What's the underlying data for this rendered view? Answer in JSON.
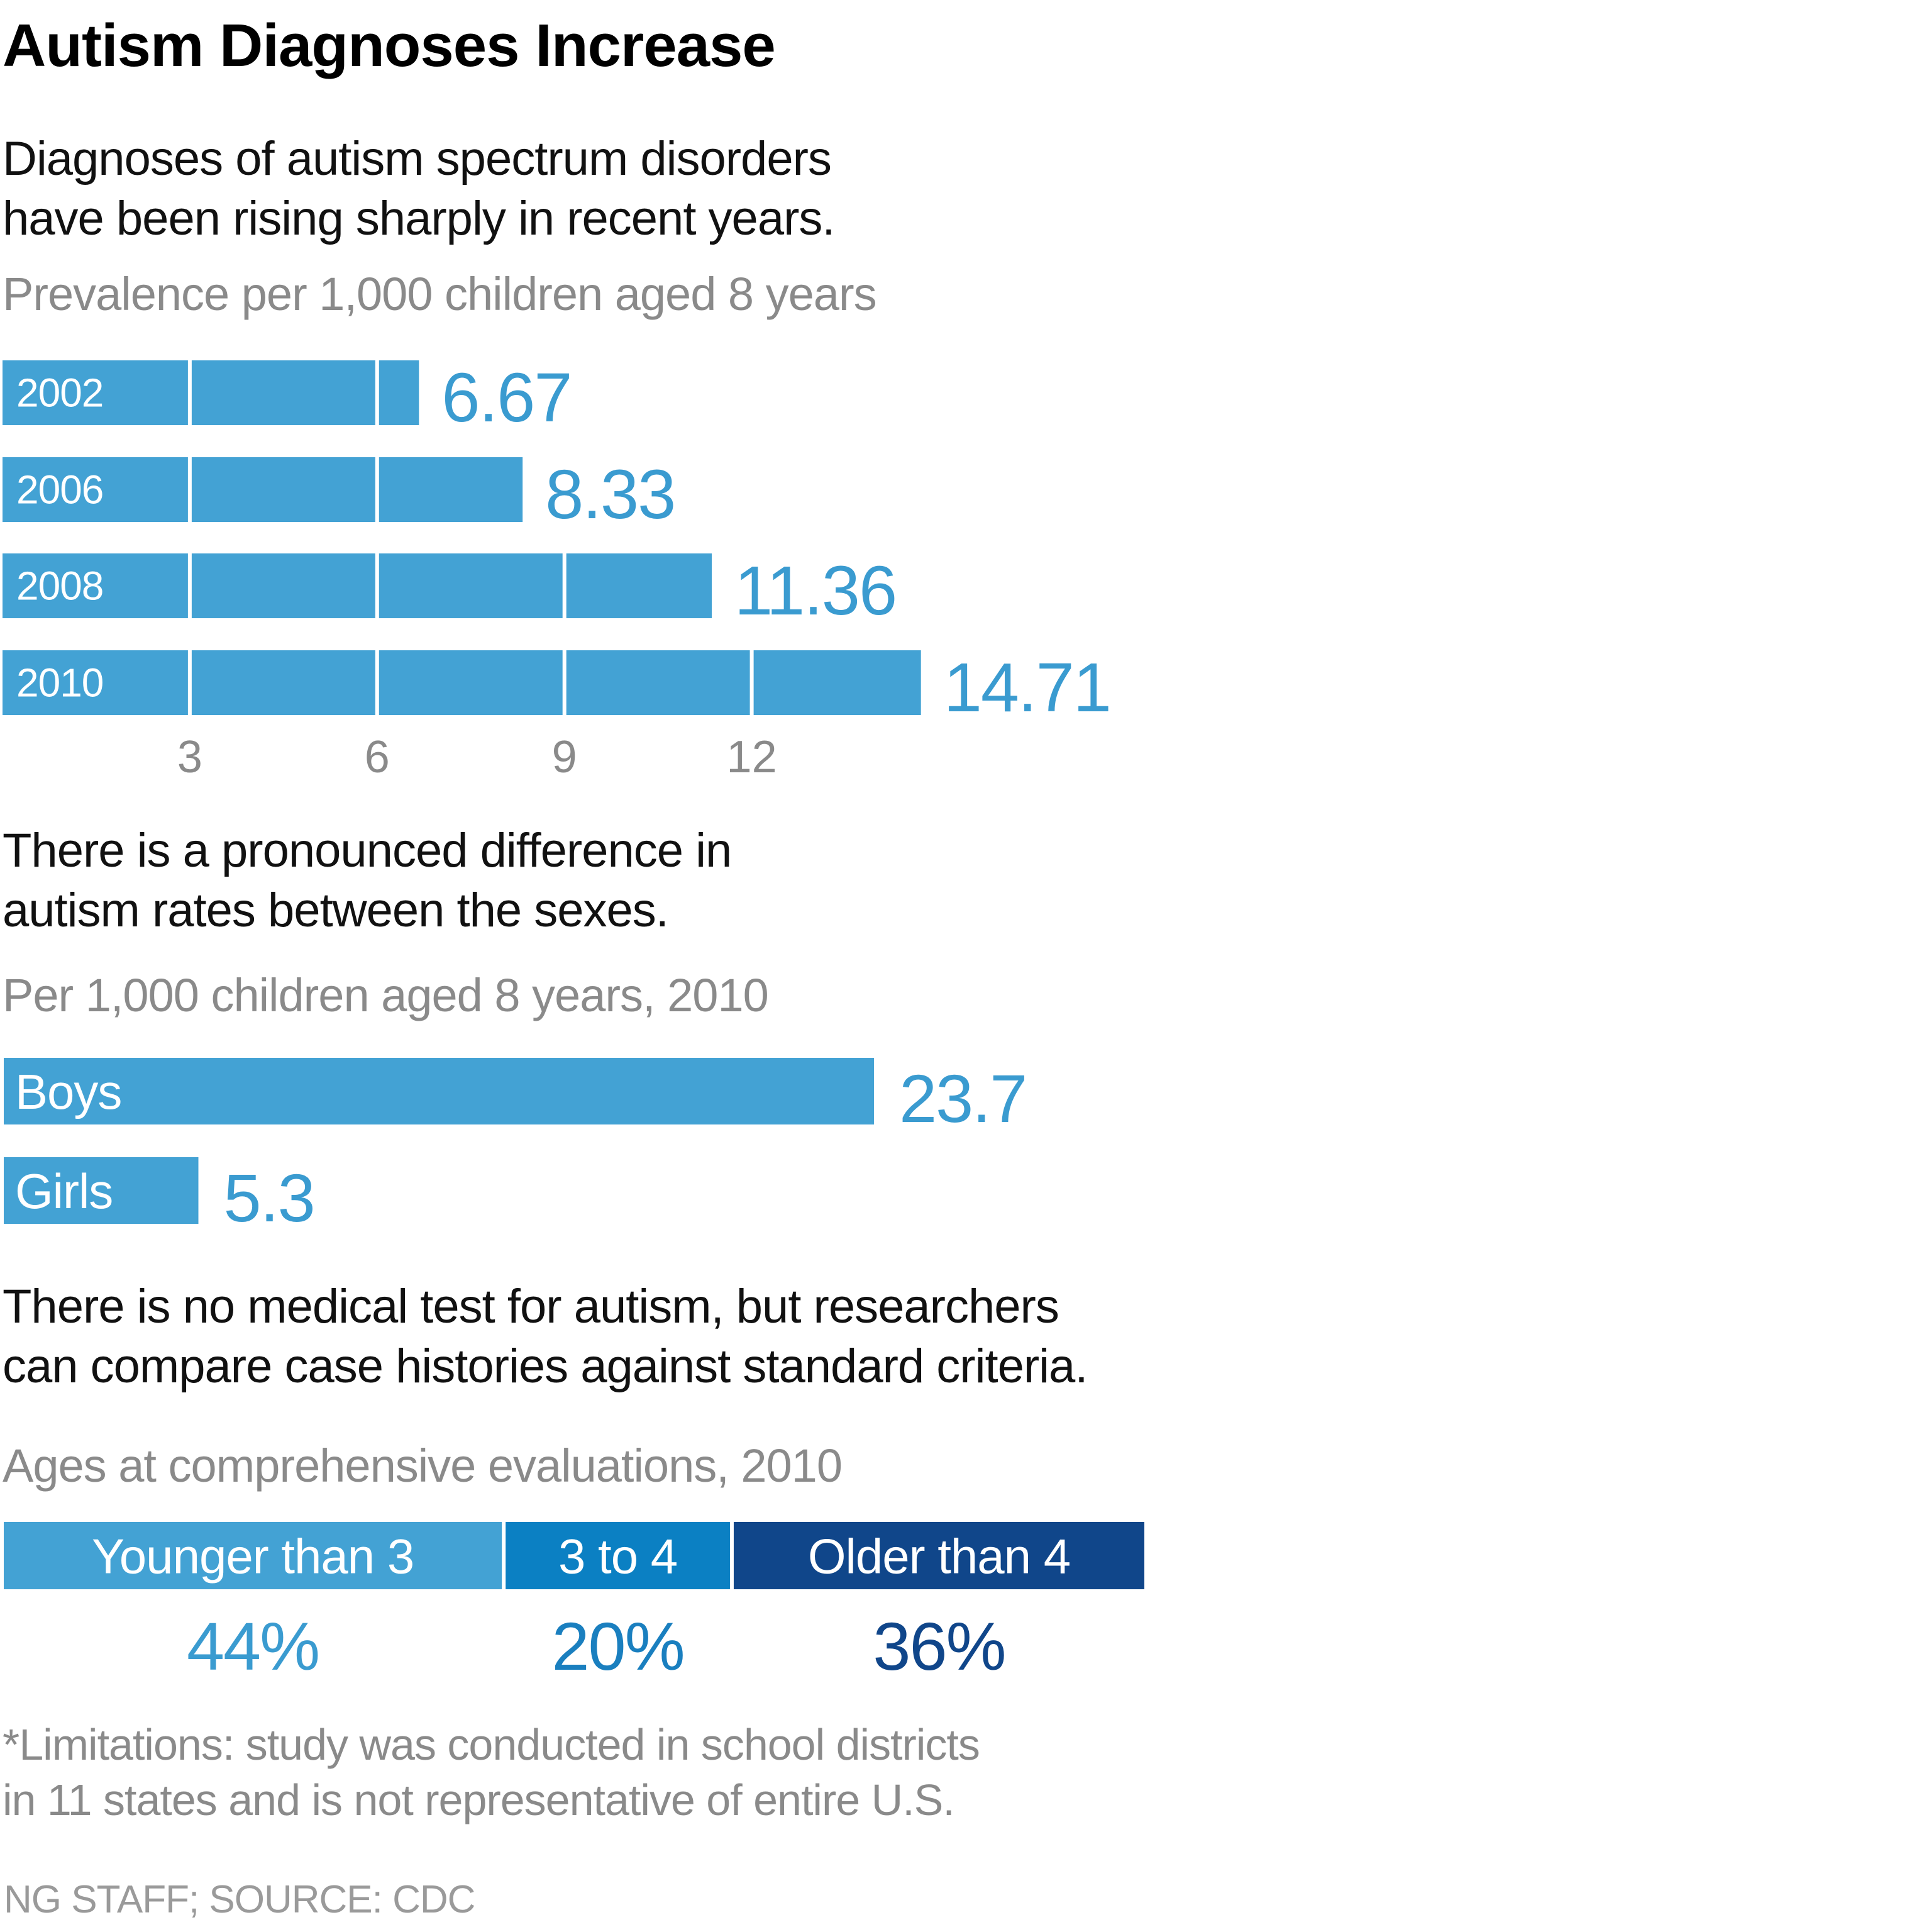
{
  "title": "Autism Diagnoses Increase",
  "colors": {
    "bar_light": "#43A2D4",
    "bar_mid": "#0B80C3",
    "bar_dark": "#10468A",
    "value_text": "#3A9BD0",
    "axis_text": "#8a8a8a"
  },
  "section1": {
    "intro_lines": [
      "Diagnoses of autism spectrum disorders",
      "have been rising sharply in recent years."
    ],
    "label": "Prevalence per 1,000 children aged 8 years"
  },
  "section2": {
    "intro_lines": [
      "There is a pronounced difference in",
      "autism rates between the sexes."
    ],
    "label": "Per 1,000 children aged 8 years, 2010"
  },
  "section3": {
    "intro_lines": [
      "There is no medical test for autism, but researchers",
      "can compare case histories against standard criteria."
    ],
    "label": "Ages at comprehensive evaluations, 2010"
  },
  "footnote_lines": [
    "*Limitations: study was conducted in school districts",
    "in 11 states and is not representative of entire U.S."
  ],
  "credit": "NG STAFF; SOURCE: CDC",
  "chart_data": [
    {
      "type": "bar",
      "orientation": "horizontal",
      "title": "Prevalence per 1,000 children aged 8 years",
      "categories": [
        "2002",
        "2006",
        "2008",
        "2010"
      ],
      "values": [
        6.67,
        8.33,
        11.36,
        14.71
      ],
      "value_labels": [
        "6.67",
        "8.33",
        "11.36",
        "14.71"
      ],
      "xticks": [
        3,
        6,
        9,
        12
      ],
      "xtick_labels": [
        "3",
        "6",
        "9",
        "12"
      ],
      "xlim": [
        0,
        15
      ],
      "grid": "segment dividers every 3 units"
    },
    {
      "type": "bar",
      "orientation": "horizontal",
      "title": "Per 1,000 children aged 8 years, 2010",
      "categories": [
        "Boys",
        "Girls"
      ],
      "values": [
        23.7,
        5.3
      ],
      "value_labels": [
        "23.7",
        "5.3"
      ]
    },
    {
      "type": "bar",
      "orientation": "stacked-horizontal",
      "title": "Ages at comprehensive evaluations, 2010",
      "categories": [
        "Younger than 3",
        "3 to 4",
        "Older than 4"
      ],
      "values": [
        44,
        20,
        36
      ],
      "value_labels": [
        "44%",
        "20%",
        "36%"
      ],
      "unit": "%"
    }
  ]
}
